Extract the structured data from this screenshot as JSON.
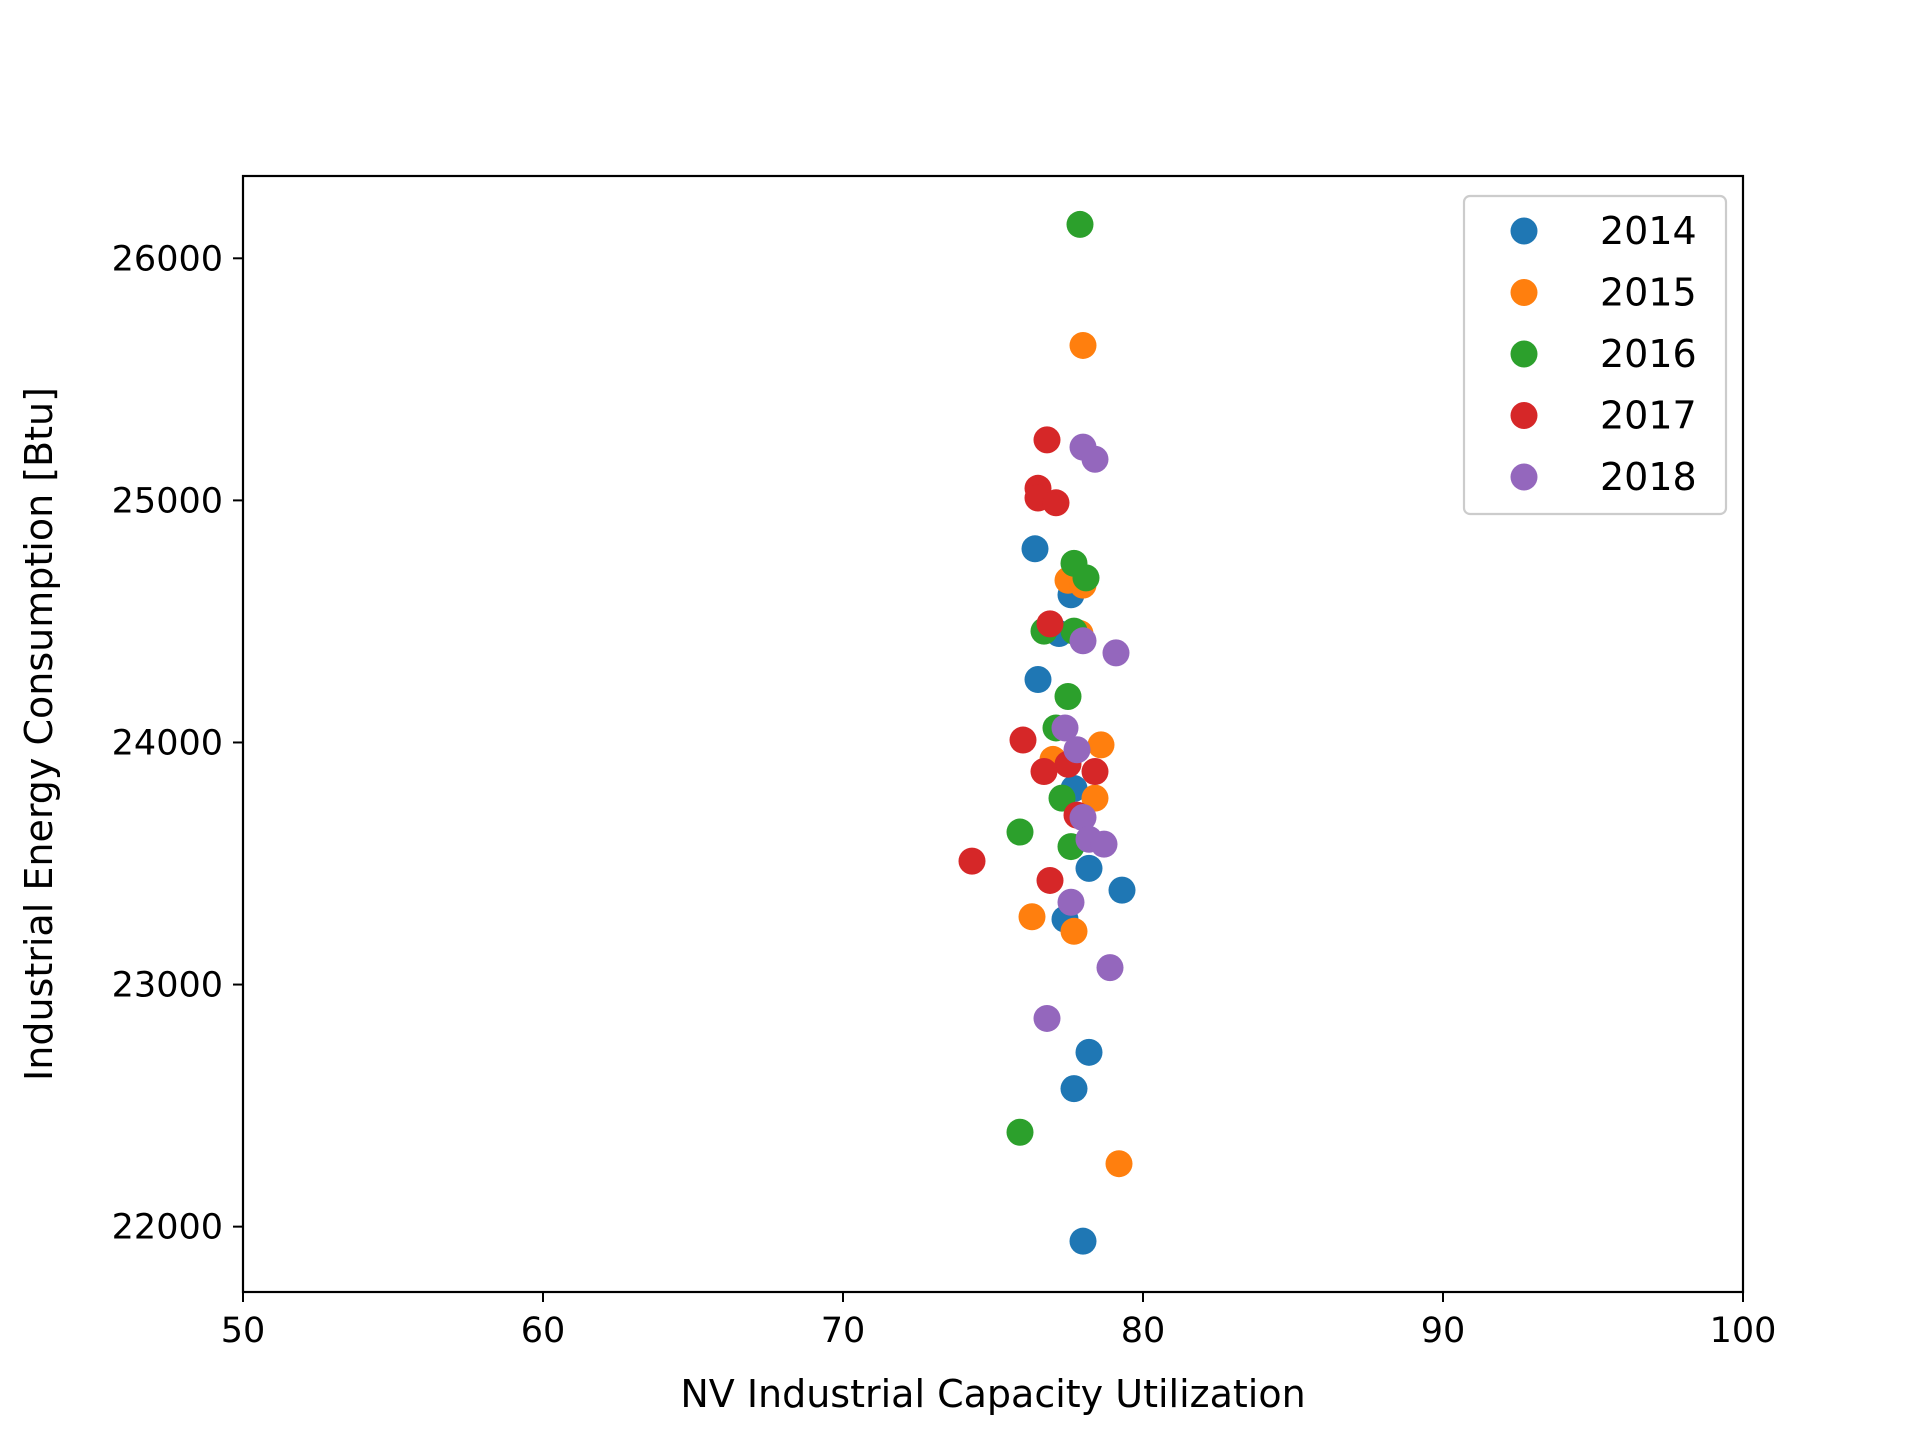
{
  "chart_data": {
    "type": "scatter",
    "title": "",
    "xlabel": "NV Industrial Capacity Utilization",
    "ylabel": "Industrial Energy Consumption [Btu]",
    "xlim": [
      50,
      100
    ],
    "ylim": [
      21730,
      26340
    ],
    "xticks": [
      50,
      60,
      70,
      80,
      90,
      100
    ],
    "yticks": [
      22000,
      23000,
      24000,
      25000,
      26000
    ],
    "grid": false,
    "legend_position": "top-right",
    "series": [
      {
        "name": "2014",
        "color": "#1f77b4",
        "points": [
          {
            "x": 76.4,
            "y": 24800
          },
          {
            "x": 77.6,
            "y": 24610
          },
          {
            "x": 77.2,
            "y": 24450
          },
          {
            "x": 76.5,
            "y": 24260
          },
          {
            "x": 77.7,
            "y": 23810
          },
          {
            "x": 78.2,
            "y": 23480
          },
          {
            "x": 79.3,
            "y": 23390
          },
          {
            "x": 77.4,
            "y": 23270
          },
          {
            "x": 78.2,
            "y": 22720
          },
          {
            "x": 77.7,
            "y": 22570
          },
          {
            "x": 78.0,
            "y": 21940
          }
        ]
      },
      {
        "name": "2015",
        "color": "#ff7f0e",
        "points": [
          {
            "x": 78.0,
            "y": 25640
          },
          {
            "x": 77.5,
            "y": 24670
          },
          {
            "x": 78.0,
            "y": 24650
          },
          {
            "x": 77.9,
            "y": 24450
          },
          {
            "x": 78.6,
            "y": 23990
          },
          {
            "x": 77.0,
            "y": 23930
          },
          {
            "x": 78.4,
            "y": 23770
          },
          {
            "x": 76.3,
            "y": 23280
          },
          {
            "x": 77.7,
            "y": 23220
          },
          {
            "x": 79.2,
            "y": 22260
          }
        ]
      },
      {
        "name": "2016",
        "color": "#2ca02c",
        "points": [
          {
            "x": 77.9,
            "y": 26140
          },
          {
            "x": 77.7,
            "y": 24740
          },
          {
            "x": 78.1,
            "y": 24680
          },
          {
            "x": 76.7,
            "y": 24460
          },
          {
            "x": 77.7,
            "y": 24460
          },
          {
            "x": 77.5,
            "y": 24190
          },
          {
            "x": 77.1,
            "y": 24060
          },
          {
            "x": 77.3,
            "y": 23770
          },
          {
            "x": 75.9,
            "y": 23630
          },
          {
            "x": 77.6,
            "y": 23570
          },
          {
            "x": 75.9,
            "y": 22390
          }
        ]
      },
      {
        "name": "2017",
        "color": "#d62728",
        "points": [
          {
            "x": 76.8,
            "y": 25250
          },
          {
            "x": 76.5,
            "y": 25050
          },
          {
            "x": 76.5,
            "y": 25010
          },
          {
            "x": 77.1,
            "y": 24990
          },
          {
            "x": 76.9,
            "y": 24490
          },
          {
            "x": 76.0,
            "y": 24010
          },
          {
            "x": 77.5,
            "y": 23910
          },
          {
            "x": 76.7,
            "y": 23880
          },
          {
            "x": 78.4,
            "y": 23880
          },
          {
            "x": 77.8,
            "y": 23700
          },
          {
            "x": 74.3,
            "y": 23510
          },
          {
            "x": 76.9,
            "y": 23430
          }
        ]
      },
      {
        "name": "2018",
        "color": "#9467bd",
        "points": [
          {
            "x": 78.0,
            "y": 25220
          },
          {
            "x": 78.4,
            "y": 25170
          },
          {
            "x": 78.0,
            "y": 24420
          },
          {
            "x": 79.1,
            "y": 24370
          },
          {
            "x": 77.4,
            "y": 24060
          },
          {
            "x": 77.8,
            "y": 23970
          },
          {
            "x": 78.0,
            "y": 23690
          },
          {
            "x": 78.2,
            "y": 23600
          },
          {
            "x": 78.7,
            "y": 23580
          },
          {
            "x": 77.6,
            "y": 23340
          },
          {
            "x": 78.9,
            "y": 23070
          },
          {
            "x": 76.8,
            "y": 22860
          }
        ]
      }
    ]
  }
}
